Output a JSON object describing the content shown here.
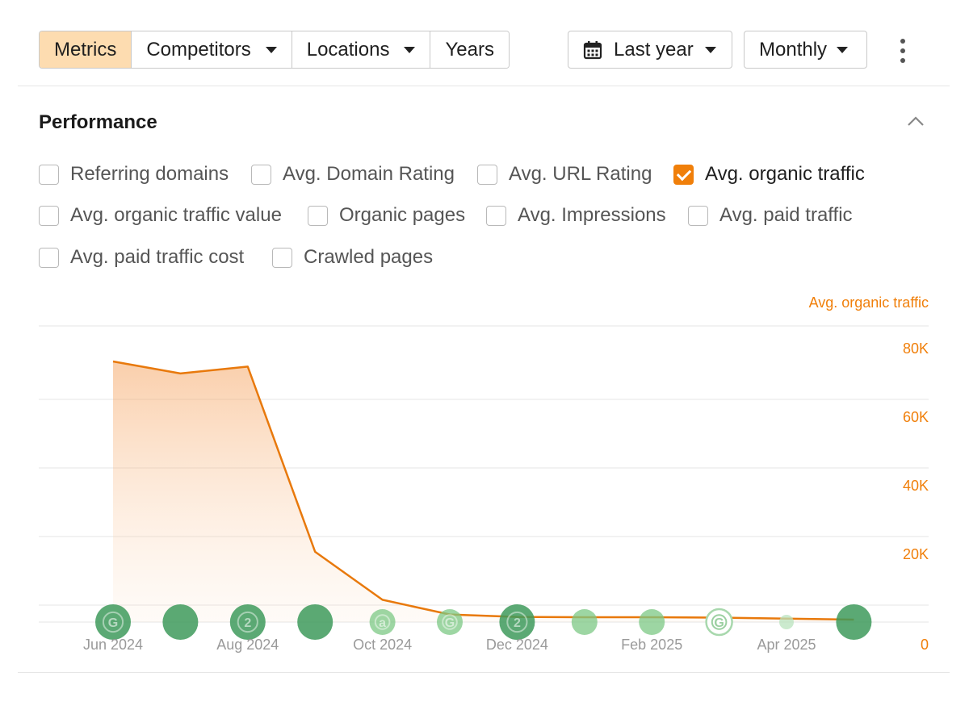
{
  "toolbar": {
    "tabs": [
      {
        "label": "Metrics",
        "active": true,
        "dropdown": false
      },
      {
        "label": "Competitors",
        "active": false,
        "dropdown": true
      },
      {
        "label": "Locations",
        "active": false,
        "dropdown": true
      },
      {
        "label": "Years",
        "active": false,
        "dropdown": false
      }
    ],
    "period_label": "Last year",
    "period_icon": "calendar-icon",
    "interval_label": "Monthly",
    "more_icon": "kebab-menu-icon"
  },
  "section": {
    "title": "Performance",
    "collapse_icon": "chevron-up-icon"
  },
  "metrics": [
    {
      "label": "Referring domains",
      "checked": false
    },
    {
      "label": "Avg. Domain Rating",
      "checked": false
    },
    {
      "label": "Avg. URL Rating",
      "checked": false
    },
    {
      "label": "Avg. organic traffic",
      "checked": true
    },
    {
      "label": "Avg. organic traffic value",
      "checked": false
    },
    {
      "label": "Organic pages",
      "checked": false
    },
    {
      "label": "Avg. Impressions",
      "checked": false
    },
    {
      "label": "Avg. paid traffic",
      "checked": false
    },
    {
      "label": "Avg. paid traffic cost",
      "checked": false
    },
    {
      "label": "Crawled pages",
      "checked": false
    }
  ],
  "colors": {
    "accent": "#f07f0a",
    "line": "#e8790c",
    "marker_dark": "#3e9a5c",
    "marker_light": "#7cc884"
  },
  "chart_data": {
    "type": "area",
    "series_label": "Avg. organic traffic",
    "x": [
      "Jun 2024",
      "Jul 2024",
      "Aug 2024",
      "Sep 2024",
      "Oct 2024",
      "Nov 2024",
      "Dec 2024",
      "Jan 2025",
      "Feb 2025",
      "Mar 2025",
      "Apr 2025",
      "May 2025"
    ],
    "x_tick_labels": [
      "Jun 2024",
      "Aug 2024",
      "Oct 2024",
      "Dec 2024",
      "Feb 2025",
      "Apr 2025"
    ],
    "values": [
      76000,
      72500,
      74500,
      20500,
      6500,
      2200,
      1500,
      1400,
      1400,
      1300,
      1000,
      700
    ],
    "y_ticks": [
      "80K",
      "60K",
      "40K",
      "20K",
      "0"
    ],
    "ylim": [
      0,
      80000
    ],
    "grid": true,
    "event_markers": [
      {
        "month": "Jun 2024",
        "letter": "G",
        "shade": "dark",
        "size": "large"
      },
      {
        "month": "Jul 2024",
        "letter": "",
        "shade": "dark",
        "size": "large"
      },
      {
        "month": "Aug 2024",
        "letter": "2",
        "shade": "dark",
        "size": "large"
      },
      {
        "month": "Sep 2024",
        "letter": "",
        "shade": "dark",
        "size": "large"
      },
      {
        "month": "Oct 2024",
        "letter": "a",
        "shade": "light",
        "size": "small"
      },
      {
        "month": "Nov 2024",
        "letter": "G",
        "shade": "light",
        "size": "small"
      },
      {
        "month": "Dec 2024",
        "letter": "2",
        "shade": "dark",
        "size": "large"
      },
      {
        "month": "Jan 2025",
        "letter": "",
        "shade": "light",
        "size": "small"
      },
      {
        "month": "Feb 2025",
        "letter": "",
        "shade": "light",
        "size": "small"
      },
      {
        "month": "Mar 2025",
        "letter": "G",
        "shade": "pale",
        "size": "small"
      },
      {
        "month": "Apr 2025",
        "letter": "",
        "shade": "pale",
        "size": "tiny"
      },
      {
        "month": "May 2025",
        "letter": "",
        "shade": "dark",
        "size": "large"
      }
    ]
  }
}
